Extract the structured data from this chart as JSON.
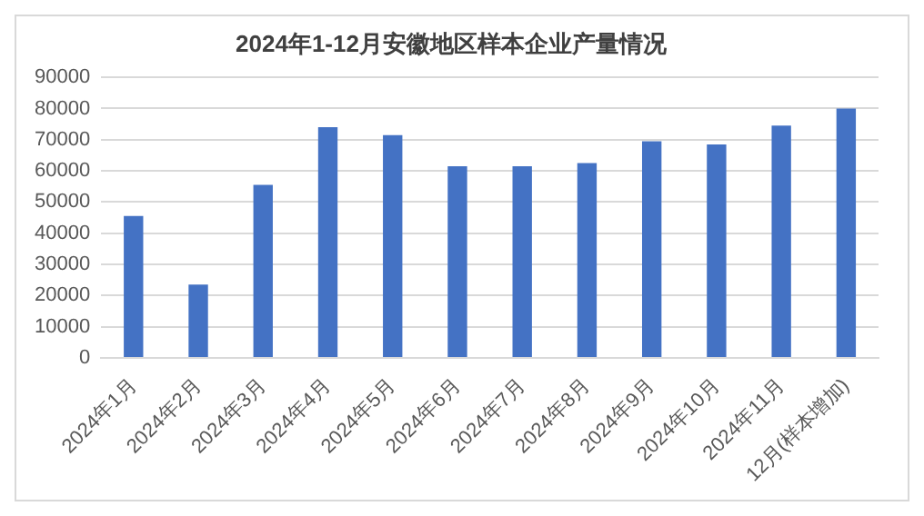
{
  "chart_data": {
    "type": "bar",
    "title": "2024年1-12月安徽地区样本企业产量情况",
    "categories": [
      "2024年1月",
      "2024年2月",
      "2024年3月",
      "2024年4月",
      "2024年5月",
      "2024年6月",
      "2024年7月",
      "2024年8月",
      "2024年9月",
      "2024年10月",
      "2024年11月",
      "12月(样本增加)"
    ],
    "values": [
      45500,
      23500,
      55500,
      74000,
      71500,
      61500,
      61500,
      62500,
      69500,
      68500,
      74500,
      80000
    ],
    "color": "#4472c4",
    "ylim": [
      0,
      90000
    ],
    "yticks": [
      0,
      10000,
      20000,
      30000,
      40000,
      50000,
      60000,
      70000,
      80000,
      90000
    ],
    "grid": "y",
    "legend": false
  }
}
